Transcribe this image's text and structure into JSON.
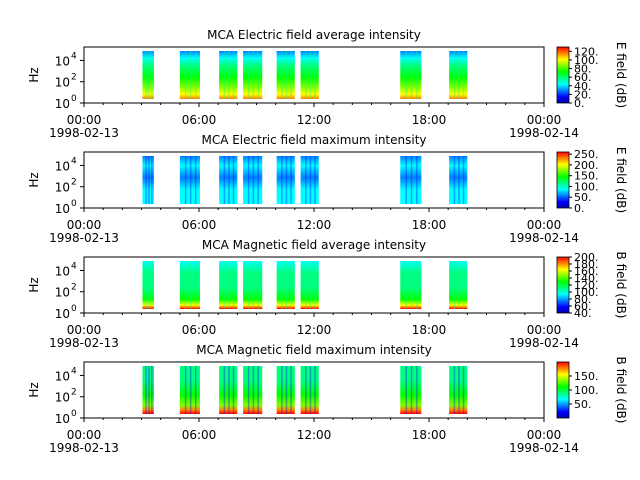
{
  "colormap": [
    "#0000aa",
    "#0000ff",
    "#0080ff",
    "#00ffff",
    "#00ff80",
    "#00ff00",
    "#80ff00",
    "#ffff00",
    "#ff8000",
    "#ff0000"
  ],
  "chart_data": [
    {
      "type": "heatmap",
      "title": "MCA  Electric field average intensity",
      "ylabel": "Hz",
      "yticks": [
        "10",
        "10",
        "10"
      ],
      "yticks_exp": [
        "0",
        "2",
        "4"
      ],
      "xticks": [
        "00:00",
        "06:00",
        "12:00",
        "18:00",
        "00:00"
      ],
      "xdates": [
        "1998-02-13",
        "1998-02-14"
      ],
      "xlim": [
        0,
        24
      ],
      "colorbar_label": "E field (dB)",
      "colorbar_ticks": [
        "120.",
        "100.",
        "80.",
        "60.",
        "40.",
        "20.",
        "0."
      ],
      "colorbar_range": [
        0,
        130
      ],
      "segments": [
        [
          3.05,
          3.65
        ],
        [
          5.0,
          6.05
        ],
        [
          7.05,
          8.0
        ],
        [
          8.3,
          9.3
        ],
        [
          10.05,
          11.0
        ],
        [
          11.3,
          12.25
        ],
        [
          16.5,
          17.6
        ],
        [
          19.05,
          20.0
        ]
      ]
    },
    {
      "type": "heatmap",
      "title": "MCA  Electric field maximum intensity",
      "ylabel": "Hz",
      "yticks": [
        "10",
        "10",
        "10"
      ],
      "yticks_exp": [
        "0",
        "2",
        "4"
      ],
      "xticks": [
        "00:00",
        "06:00",
        "12:00",
        "18:00",
        "00:00"
      ],
      "xdates": [
        "1998-02-13",
        "1998-02-14"
      ],
      "xlim": [
        0,
        24
      ],
      "colorbar_label": "E field (dB)",
      "colorbar_ticks": [
        "250.",
        "200.",
        "150.",
        "100.",
        "50.",
        "0."
      ],
      "colorbar_range": [
        0,
        260
      ],
      "segments": [
        [
          3.05,
          3.65
        ],
        [
          5.0,
          6.05
        ],
        [
          7.05,
          8.0
        ],
        [
          8.3,
          9.3
        ],
        [
          10.05,
          11.0
        ],
        [
          11.3,
          12.25
        ],
        [
          16.5,
          17.6
        ],
        [
          19.05,
          20.0
        ]
      ]
    },
    {
      "type": "heatmap",
      "title": "MCA  Magnetic field average intensity",
      "ylabel": "Hz",
      "yticks": [
        "10",
        "10",
        "10"
      ],
      "yticks_exp": [
        "0",
        "2",
        "4"
      ],
      "xticks": [
        "00:00",
        "06:00",
        "12:00",
        "18:00",
        "00:00"
      ],
      "xdates": [
        "1998-02-13",
        "1998-02-14"
      ],
      "xlim": [
        0,
        24
      ],
      "colorbar_label": "B field (dB)",
      "colorbar_ticks": [
        "200.",
        "180.",
        "160.",
        "140.",
        "120.",
        "100.",
        "80.",
        "60.",
        "40."
      ],
      "colorbar_range": [
        40,
        200
      ],
      "segments": [
        [
          3.05,
          3.65
        ],
        [
          5.0,
          6.05
        ],
        [
          7.05,
          8.0
        ],
        [
          8.3,
          9.3
        ],
        [
          10.05,
          11.0
        ],
        [
          11.3,
          12.25
        ],
        [
          16.5,
          17.6
        ],
        [
          19.05,
          20.0
        ]
      ]
    },
    {
      "type": "heatmap",
      "title": "MCA  Magnetic field maximum intensity",
      "ylabel": "Hz",
      "yticks": [
        "10",
        "10",
        "10"
      ],
      "yticks_exp": [
        "0",
        "2",
        "4"
      ],
      "xticks": [
        "00:00",
        "06:00",
        "12:00",
        "18:00",
        "00:00"
      ],
      "xdates": [
        "1998-02-13",
        "1998-02-14"
      ],
      "xlim": [
        0,
        24
      ],
      "colorbar_label": "B field (dB)",
      "colorbar_ticks": [
        "150.",
        "100.",
        "50."
      ],
      "colorbar_range": [
        0,
        200
      ],
      "segments": [
        [
          3.05,
          3.65
        ],
        [
          5.0,
          6.05
        ],
        [
          7.05,
          8.0
        ],
        [
          8.3,
          9.3
        ],
        [
          10.05,
          11.0
        ],
        [
          11.3,
          12.25
        ],
        [
          16.5,
          17.6
        ],
        [
          19.05,
          20.0
        ]
      ]
    }
  ]
}
